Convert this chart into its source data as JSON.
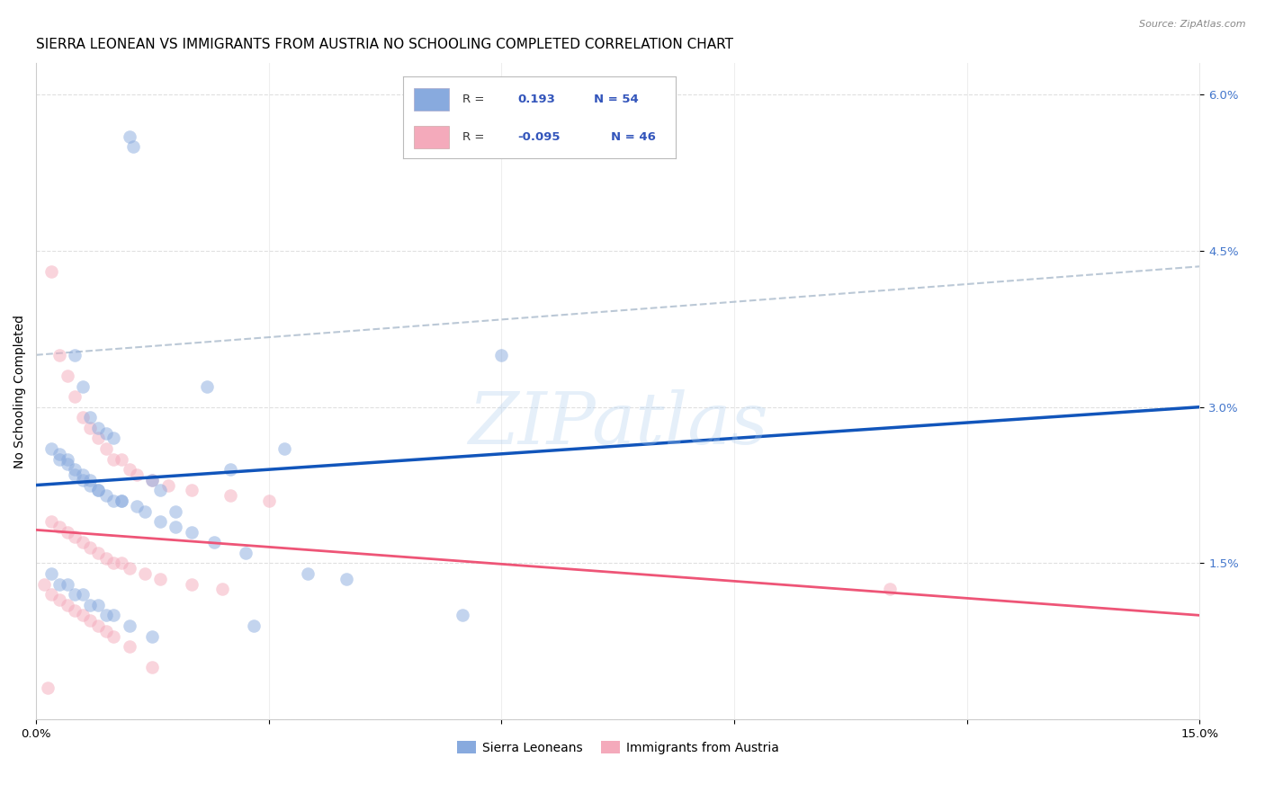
{
  "title": "SIERRA LEONEAN VS IMMIGRANTS FROM AUSTRIA NO SCHOOLING COMPLETED CORRELATION CHART",
  "source": "Source: ZipAtlas.com",
  "ylabel": "No Schooling Completed",
  "ytick_labels": [
    "1.5%",
    "3.0%",
    "4.5%",
    "6.0%"
  ],
  "ytick_values": [
    1.5,
    3.0,
    4.5,
    6.0
  ],
  "xlim": [
    0.0,
    15.0
  ],
  "ylim": [
    0.0,
    6.3
  ],
  "series1_label": "Sierra Leoneans",
  "series2_label": "Immigrants from Austria",
  "series1_color": "#88AADE",
  "series2_color": "#F4AABB",
  "series1_R": "0.193",
  "series1_N": "54",
  "series2_R": "-0.095",
  "series2_N": "46",
  "legend_R_color": "#3355BB",
  "watermark_text": "ZIPatlas",
  "series1_x": [
    1.2,
    1.25,
    0.5,
    0.6,
    0.7,
    0.8,
    0.9,
    1.0,
    0.3,
    0.4,
    0.5,
    0.6,
    0.7,
    1.5,
    1.6,
    0.8,
    1.1,
    2.2,
    1.8,
    2.5,
    3.2,
    5.5,
    0.2,
    0.3,
    0.4,
    0.5,
    0.6,
    0.7,
    0.8,
    0.9,
    1.0,
    1.1,
    1.3,
    1.4,
    1.6,
    1.8,
    2.0,
    2.3,
    2.7,
    3.5,
    4.0,
    0.2,
    0.3,
    0.4,
    0.5,
    0.6,
    0.7,
    0.8,
    0.9,
    1.0,
    1.2,
    1.5,
    2.8,
    6.0
  ],
  "series1_y": [
    5.6,
    5.5,
    3.5,
    3.2,
    2.9,
    2.8,
    2.75,
    2.7,
    2.5,
    2.5,
    2.4,
    2.35,
    2.3,
    2.3,
    2.2,
    2.2,
    2.1,
    3.2,
    2.0,
    2.4,
    2.6,
    1.0,
    2.6,
    2.55,
    2.45,
    2.35,
    2.3,
    2.25,
    2.2,
    2.15,
    2.1,
    2.1,
    2.05,
    2.0,
    1.9,
    1.85,
    1.8,
    1.7,
    1.6,
    1.4,
    1.35,
    1.4,
    1.3,
    1.3,
    1.2,
    1.2,
    1.1,
    1.1,
    1.0,
    1.0,
    0.9,
    0.8,
    0.9,
    3.5
  ],
  "series2_x": [
    0.2,
    0.3,
    0.4,
    0.5,
    0.6,
    0.7,
    0.8,
    0.9,
    1.0,
    1.1,
    1.2,
    1.3,
    1.5,
    1.7,
    2.0,
    2.5,
    3.0,
    0.2,
    0.3,
    0.4,
    0.5,
    0.6,
    0.7,
    0.8,
    0.9,
    1.0,
    1.1,
    1.2,
    1.4,
    1.6,
    2.0,
    2.4,
    0.2,
    0.3,
    0.4,
    0.5,
    0.6,
    0.7,
    0.8,
    0.9,
    1.0,
    1.2,
    1.5,
    0.1,
    0.15,
    11.0
  ],
  "series2_y": [
    4.3,
    3.5,
    3.3,
    3.1,
    2.9,
    2.8,
    2.7,
    2.6,
    2.5,
    2.5,
    2.4,
    2.35,
    2.3,
    2.25,
    2.2,
    2.15,
    2.1,
    1.9,
    1.85,
    1.8,
    1.75,
    1.7,
    1.65,
    1.6,
    1.55,
    1.5,
    1.5,
    1.45,
    1.4,
    1.35,
    1.3,
    1.25,
    1.2,
    1.15,
    1.1,
    1.05,
    1.0,
    0.95,
    0.9,
    0.85,
    0.8,
    0.7,
    0.5,
    1.3,
    0.3,
    1.25
  ],
  "line1_x0": 0.0,
  "line1_y0": 2.25,
  "line1_x1": 15.0,
  "line1_y1": 3.0,
  "line2_x0": 0.0,
  "line2_y0": 1.82,
  "line2_x1": 15.0,
  "line2_y1": 1.0,
  "dashed_line_x0": 0.0,
  "dashed_line_y0": 3.5,
  "dashed_line_x1": 15.0,
  "dashed_line_y1": 4.35,
  "grid_color": "#DDDDDD",
  "background_color": "#FFFFFF",
  "marker_size": 110,
  "marker_alpha": 0.5,
  "title_fontsize": 11,
  "axis_label_fontsize": 10,
  "tick_fontsize": 9.5,
  "legend_fontsize": 10
}
